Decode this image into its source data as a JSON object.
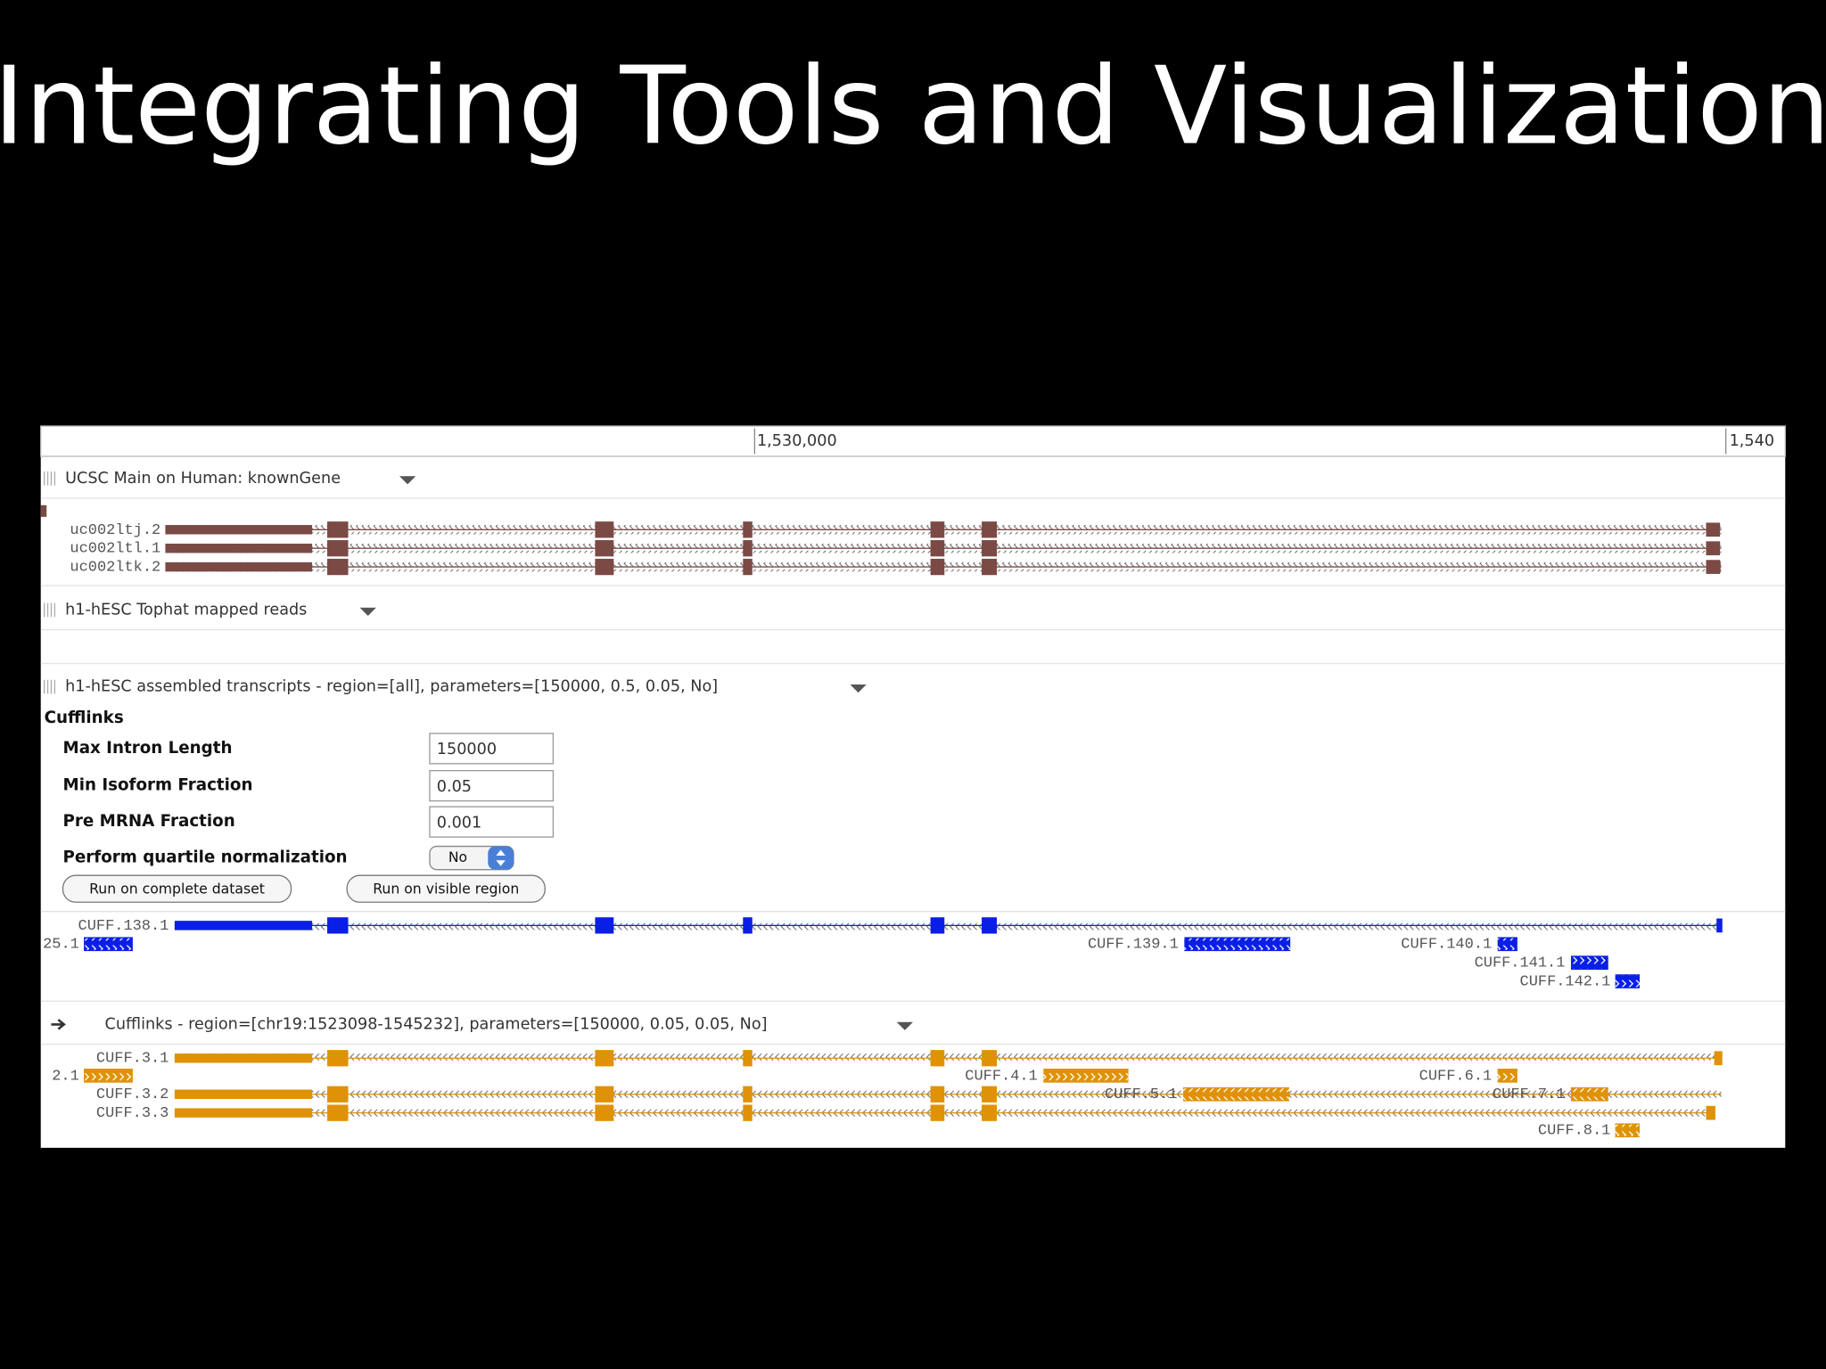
{
  "title": "Integrating Tools and Visualization",
  "ruler": {
    "labels": [
      "1,530,000",
      "1,540"
    ]
  },
  "tracks": [
    {
      "header": "UCSC Main on Human: knownGene",
      "features": [
        "uc002ltj.2",
        "uc002ltl.1",
        "uc002ltk.2"
      ]
    },
    {
      "header": "h1-hESC Tophat mapped reads"
    },
    {
      "header": "h1-hESC assembled transcripts - region=[all], parameters=[150000, 0.5, 0.05, No]",
      "tool": {
        "name": "Cufflinks",
        "params": [
          {
            "label": "Max Intron Length",
            "value": "150000"
          },
          {
            "label": "Min Isoform Fraction",
            "value": "0.05"
          },
          {
            "label": "Pre MRNA Fraction",
            "value": "0.001"
          },
          {
            "label": "Perform quartile normalization",
            "value": "No"
          }
        ],
        "buttons": [
          "Run on complete dataset",
          "Run on visible region"
        ]
      },
      "features": [
        "CUFF.138.1",
        "25.1",
        "CUFF.139.1",
        "CUFF.140.1",
        "CUFF.141.1",
        "CUFF.142.1"
      ]
    },
    {
      "header": "Cufflinks - region=[chr19:1523098-1545232], parameters=[150000, 0.05, 0.05, No]",
      "features": [
        "CUFF.3.1",
        "2.1",
        "CUFF.3.2",
        "CUFF.3.3",
        "CUFF.4.1",
        "CUFF.5.1",
        "CUFF.6.1",
        "CUFF.7.1",
        "CUFF.8.1"
      ]
    }
  ]
}
